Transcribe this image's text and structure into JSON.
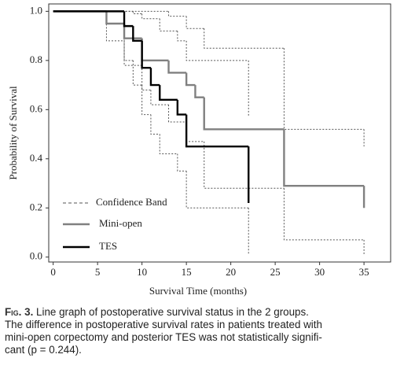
{
  "chart_data": {
    "type": "line",
    "step": true,
    "xlabel": "Survival Time (months)",
    "ylabel": "Probability of Survival",
    "xlim": [
      -0.5,
      38
    ],
    "ylim": [
      -0.02,
      1.03
    ],
    "xticks": [
      0,
      5,
      10,
      15,
      20,
      25,
      30,
      35
    ],
    "yticks": [
      {
        "value": 0,
        "label": "0.0"
      },
      {
        "value": 0.2,
        "label": "0.2"
      },
      {
        "value": 0.4,
        "label": "0.4"
      },
      {
        "value": 0.6,
        "label": "0.6"
      },
      {
        "value": 0.8,
        "label": "0.8"
      },
      {
        "value": 1,
        "label": "1.0"
      }
    ],
    "legend": "lower left",
    "series": [
      {
        "name": "Mini-open",
        "color": "#808080",
        "x": [
          0,
          6,
          8,
          10,
          13,
          15,
          16,
          17,
          26,
          35
        ],
        "values": [
          1.0,
          0.95,
          0.89,
          0.8,
          0.75,
          0.7,
          0.65,
          0.52,
          0.29,
          0.2
        ]
      },
      {
        "name": "TES",
        "color": "#000000",
        "x": [
          0,
          8,
          9,
          10,
          11,
          12,
          14,
          15,
          22
        ],
        "values": [
          1.0,
          0.94,
          0.88,
          0.77,
          0.7,
          0.64,
          0.58,
          0.45,
          0.22
        ]
      }
    ],
    "confidence_band": {
      "label": "Confidence Band",
      "color": "#555555",
      "series": [
        {
          "x": [
            0,
            13,
            15,
            17,
            26,
            35
          ],
          "values": [
            1.0,
            0.98,
            0.93,
            0.85,
            0.52,
            0.45
          ]
        },
        {
          "x": [
            0,
            6,
            8,
            10,
            11,
            13,
            15,
            17,
            26,
            35
          ],
          "values": [
            1.0,
            0.88,
            0.78,
            0.68,
            0.62,
            0.55,
            0.47,
            0.28,
            0.07,
            0.01
          ]
        },
        {
          "x": [
            0,
            9,
            10,
            12,
            14,
            15,
            22
          ],
          "values": [
            1.0,
            0.99,
            0.97,
            0.92,
            0.88,
            0.8,
            0.57
          ]
        },
        {
          "x": [
            0,
            8,
            9,
            10,
            11,
            12,
            14,
            15,
            22
          ],
          "values": [
            1.0,
            0.8,
            0.7,
            0.58,
            0.5,
            0.42,
            0.35,
            0.2,
            0.01
          ]
        }
      ]
    }
  },
  "caption": {
    "label": "Fig. 3.",
    "lines": [
      "Line graph of postoperative survival status in the 2 groups.",
      "The difference in postoperative survival rates in patients treated with",
      "mini-open corpectomy and posterior TES was not statistically signifi-",
      "cant (p = 0.244)."
    ]
  }
}
